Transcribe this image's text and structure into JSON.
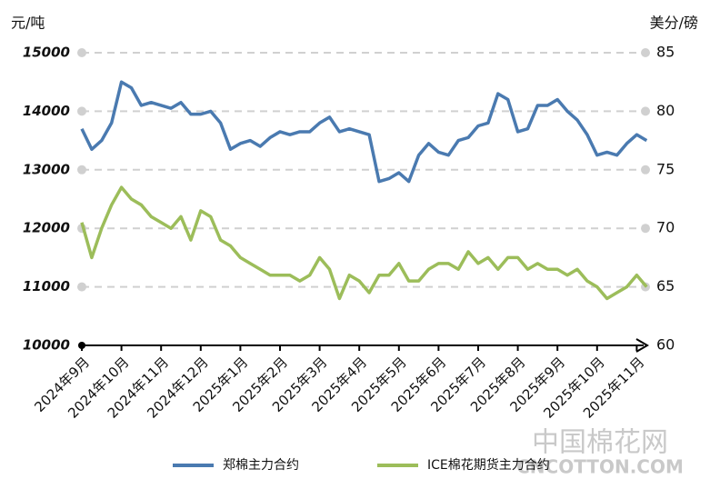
{
  "chart_data": {
    "type": "line",
    "y_label": "元/吨",
    "y2_label": "美分/磅",
    "categories": [
      "2024年9月",
      null,
      null,
      null,
      "2024年10月",
      null,
      null,
      null,
      "2024年11月",
      null,
      null,
      null,
      "2024年12月",
      null,
      null,
      null,
      "2025年1月",
      null,
      null,
      null,
      "2025年2月",
      null,
      null,
      null,
      "2025年3月",
      null,
      null,
      null,
      "2025年4月",
      null,
      null,
      null,
      "2025年5月",
      null,
      null,
      null,
      "2025年6月",
      null,
      null,
      null,
      "2025年7月",
      null,
      null,
      null,
      "2025年8月",
      null,
      null,
      null,
      "2025年9月",
      null,
      null,
      null,
      "2025年10月",
      null,
      null,
      null,
      "2025年11月",
      null
    ],
    "series": [
      {
        "name": "郑棉主力合约",
        "color": "#4a7ab0",
        "axis": "y",
        "values": [
          13700,
          13350,
          13500,
          13800,
          14500,
          14400,
          14100,
          14150,
          14100,
          14050,
          14150,
          13950,
          13950,
          14000,
          13800,
          13350,
          13450,
          13500,
          13400,
          13550,
          13650,
          13600,
          13650,
          13650,
          13800,
          13900,
          13650,
          13700,
          13650,
          13600,
          12800,
          12850,
          12950,
          12800,
          13250,
          13450,
          13300,
          13250,
          13500,
          13550,
          13750,
          13800,
          14300,
          14200,
          13650,
          13700,
          14100,
          14100,
          14200,
          14000,
          13850,
          13600,
          13250,
          13300,
          13250,
          13450,
          13600,
          13500
        ]
      },
      {
        "name": "ICE棉花期货主力合约",
        "color": "#9cbd5a",
        "axis": "y2",
        "values": [
          70.5,
          67.5,
          70,
          72,
          73.5,
          72.5,
          72,
          71,
          70.5,
          70,
          71,
          69,
          71.5,
          71,
          69,
          68.5,
          67.5,
          67,
          66.5,
          66,
          66,
          66,
          65.5,
          66,
          67.5,
          66.5,
          64,
          66,
          65.5,
          64.5,
          66,
          66,
          67,
          65.5,
          65.5,
          66.5,
          67,
          67,
          66.5,
          68,
          67,
          67.5,
          66.5,
          67.5,
          67.5,
          66.5,
          67,
          66.5,
          66.5,
          66,
          66.5,
          65.5,
          65,
          64,
          64.5,
          65,
          66,
          65
        ]
      }
    ],
    "ylim": [
      10000,
      15000
    ],
    "yticks": [
      10000,
      11000,
      12000,
      13000,
      14000,
      15000
    ],
    "y2lim": [
      60,
      85
    ],
    "y2ticks": [
      60,
      65,
      70,
      75,
      80,
      85
    ],
    "grid": true,
    "legend": "bottom",
    "watermark": [
      "中国棉花网",
      "CNCOTTON.COM"
    ]
  }
}
